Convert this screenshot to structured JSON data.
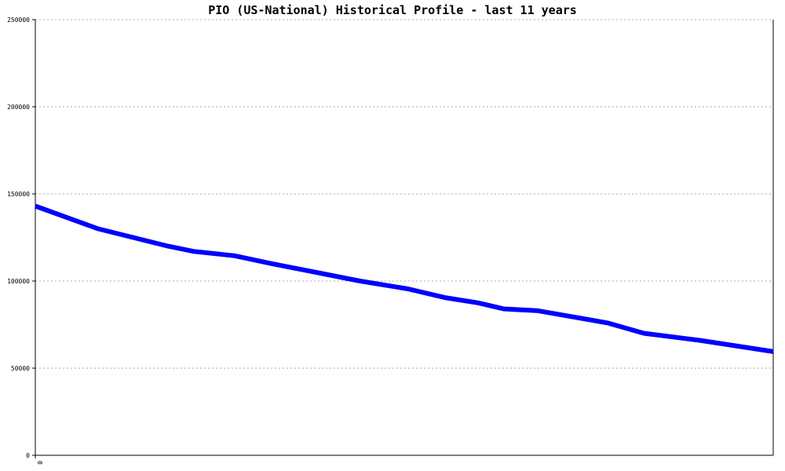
{
  "chart_data": {
    "type": "line",
    "title": "PIO (US-National) Historical Profile - last 11 years",
    "xlabel": "",
    "ylabel": "",
    "ylim": [
      0,
      250000
    ],
    "yticks": [
      0,
      50000,
      100000,
      150000,
      200000,
      250000
    ],
    "ytick_labels": [
      "0",
      "50000",
      "100000",
      "150000",
      "200000",
      "250000"
    ],
    "xticks": [
      "0"
    ],
    "grid": true,
    "legend": "none",
    "series": [
      {
        "color": "#0000ff",
        "points": [
          [
            0.0,
            143000
          ],
          [
            0.085,
            130000
          ],
          [
            0.18,
            120000
          ],
          [
            0.215,
            117000
          ],
          [
            0.27,
            114500
          ],
          [
            0.32,
            110000
          ],
          [
            0.44,
            100000
          ],
          [
            0.505,
            95500
          ],
          [
            0.555,
            90500
          ],
          [
            0.6,
            87500
          ],
          [
            0.635,
            84000
          ],
          [
            0.68,
            83000
          ],
          [
            0.775,
            76000
          ],
          [
            0.825,
            70000
          ],
          [
            0.9,
            66000
          ],
          [
            1.0,
            59500
          ]
        ]
      }
    ],
    "colors": {
      "line": "#0000ff",
      "grid": "#aaaaaa",
      "axis": "#000000"
    }
  }
}
